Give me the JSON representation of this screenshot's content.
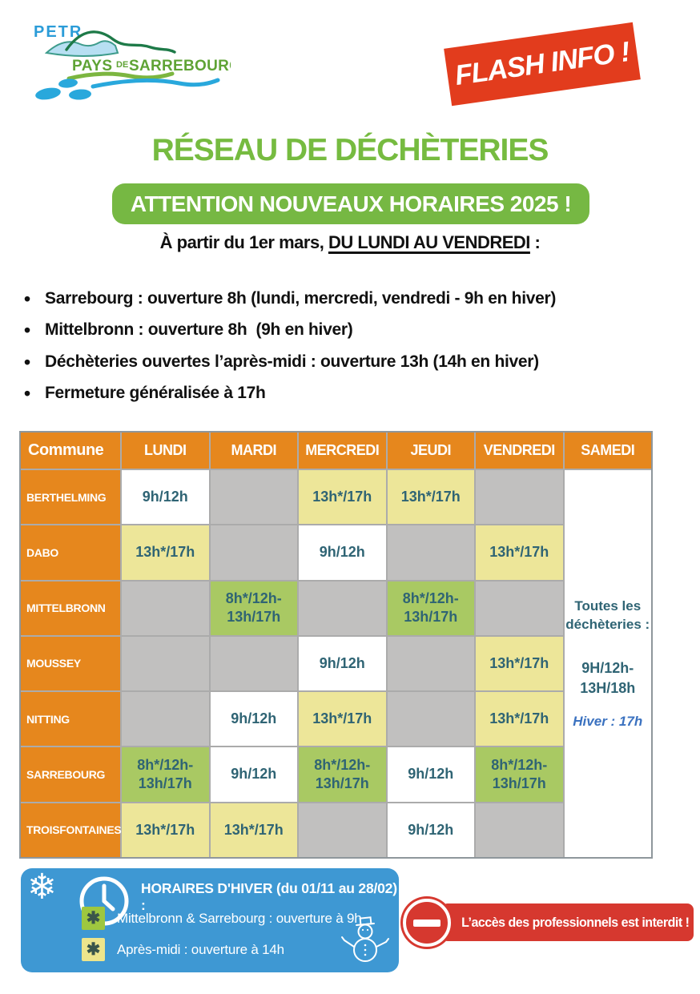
{
  "logo": {
    "petr": "PETR",
    "pays": "PAYS",
    "de": "DE",
    "sarrebourg": "SARREBOURG"
  },
  "flash_badge": {
    "label": "FLASH INFO !",
    "color": "#E23C1D"
  },
  "title": "RÉSEAU DE DÉCHÈTERIES",
  "title_color": "#76BB40",
  "banner": {
    "label": "ATTENTION NOUVEAUX HORAIRES 2025 !",
    "color": "#76B843"
  },
  "subtitle": {
    "prefix": "À partir du 1er mars, ",
    "underlined": "DU LUNDI AU VENDREDI",
    "suffix": " :"
  },
  "bullets": [
    "Sarrebourg : ouverture 8h (lundi, mercredi, vendredi - 9h en hiver)",
    "Mittelbronn : ouverture 8h  (9h en hiver)",
    "Déchèteries ouvertes l’après-midi : ouverture 13h (14h en hiver)",
    "Fermeture généralisée à 17h"
  ],
  "table": {
    "columns": [
      "Commune",
      "LUNDI",
      "MARDI",
      "MERCREDI",
      "JEUDI",
      "VENDREDI",
      "SAMEDI"
    ],
    "rows": [
      {
        "commune": "BERTHELMING",
        "cells": [
          {
            "text": "9h/12h",
            "style": "open"
          },
          {
            "text": "",
            "style": "closed"
          },
          {
            "text": "13h*/17h",
            "style": "afternoon"
          },
          {
            "text": "13h*/17h",
            "style": "afternoon"
          },
          {
            "text": "",
            "style": "closed"
          }
        ]
      },
      {
        "commune": "DABO",
        "cells": [
          {
            "text": "13h*/17h",
            "style": "afternoon"
          },
          {
            "text": "",
            "style": "closed"
          },
          {
            "text": "9h/12h",
            "style": "open"
          },
          {
            "text": "",
            "style": "closed"
          },
          {
            "text": "13h*/17h",
            "style": "afternoon"
          }
        ]
      },
      {
        "commune": "MITTELBRONN",
        "cells": [
          {
            "text": "",
            "style": "closed"
          },
          {
            "text": "8h*/12h-\n13h/17h",
            "style": "full"
          },
          {
            "text": "",
            "style": "closed"
          },
          {
            "text": "8h*/12h-\n13h/17h",
            "style": "full"
          },
          {
            "text": "",
            "style": "closed"
          }
        ]
      },
      {
        "commune": "MOUSSEY",
        "cells": [
          {
            "text": "",
            "style": "closed"
          },
          {
            "text": "",
            "style": "closed"
          },
          {
            "text": "9h/12h",
            "style": "open"
          },
          {
            "text": "",
            "style": "closed"
          },
          {
            "text": "13h*/17h",
            "style": "afternoon"
          }
        ]
      },
      {
        "commune": "NITTING",
        "cells": [
          {
            "text": "",
            "style": "closed"
          },
          {
            "text": "9h/12h",
            "style": "open"
          },
          {
            "text": "13h*/17h",
            "style": "afternoon"
          },
          {
            "text": "",
            "style": "closed"
          },
          {
            "text": "13h*/17h",
            "style": "afternoon"
          }
        ]
      },
      {
        "commune": "SARREBOURG",
        "cells": [
          {
            "text": "8h*/12h-\n13h/17h",
            "style": "full"
          },
          {
            "text": "9h/12h",
            "style": "open"
          },
          {
            "text": "8h*/12h-\n13h/17h",
            "style": "full"
          },
          {
            "text": "9h/12h",
            "style": "open"
          },
          {
            "text": "8h*/12h-\n13h/17h",
            "style": "full"
          }
        ]
      },
      {
        "commune": "TROISFONTAINES",
        "cells": [
          {
            "text": "13h*/17h",
            "style": "afternoon"
          },
          {
            "text": "13h*/17h",
            "style": "afternoon"
          },
          {
            "text": "",
            "style": "closed"
          },
          {
            "text": "9h/12h",
            "style": "open"
          },
          {
            "text": "",
            "style": "closed"
          }
        ]
      }
    ],
    "saturday_note": {
      "line1": "Toutes les",
      "line2": "déchèteries :",
      "hours1": "9H/12h-",
      "hours2": "13H/18h",
      "winter": "Hiver : 17h"
    },
    "colors": {
      "header": "#E6871D",
      "closed": "#C1C0BF",
      "open": "#FFFFFF",
      "afternoon": "#EDE699",
      "full_day": "#A9C963",
      "text": "#2F6474"
    }
  },
  "winter_box": {
    "title": "HORAIRES D'HIVER (du 01/11 au 28/02) :",
    "items": [
      {
        "marker": "✱",
        "marker_style": "green",
        "text": "Mittelbronn & Sarrebourg : ouverture à 9h"
      },
      {
        "marker": "✱",
        "marker_style": "yellow",
        "text": "Après-midi : ouverture à 14h"
      }
    ],
    "color": "#3E98D3"
  },
  "pro_badge": {
    "label": "L’accès des professionnels est interdit !",
    "color": "#D6382F"
  }
}
